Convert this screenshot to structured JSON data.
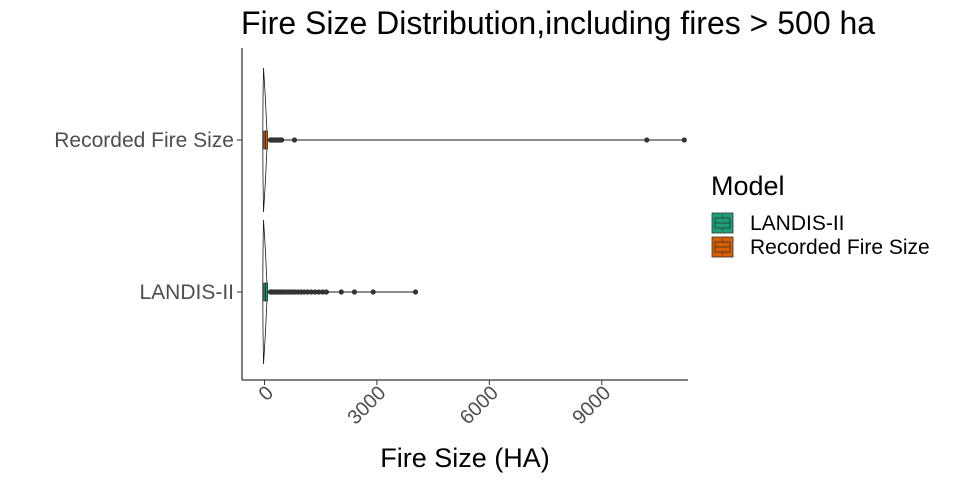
{
  "chart_data": {
    "type": "violin-box",
    "orientation": "horizontal",
    "title": "Fire Size Distribution,including fires > 500 ha",
    "xlabel": "Fire Size (HA)",
    "ylabel": "",
    "xlim": [
      -600,
      11300
    ],
    "xticks": [
      0,
      3000,
      6000,
      9000
    ],
    "xtick_labels": [
      "0",
      "3000",
      "6000",
      "9000"
    ],
    "categories": [
      "LANDIS-II",
      "Recorded Fire Size"
    ],
    "legend": {
      "title": "Model",
      "position": "right",
      "entries": [
        {
          "label": "LANDIS-II",
          "color": "#1b9e77"
        },
        {
          "label": "Recorded Fire Size",
          "color": "#d95f02"
        }
      ]
    },
    "series": [
      {
        "category": "LANDIS-II",
        "color": "#1b9e77",
        "box": {
          "min": 0,
          "q1": 5,
          "median": 20,
          "q3": 60,
          "whisker_high": 150
        },
        "outliers": [
          160,
          180,
          200,
          230,
          260,
          300,
          340,
          380,
          420,
          470,
          520,
          580,
          640,
          700,
          760,
          820,
          900,
          980,
          1060,
          1150,
          1250,
          1350,
          1450,
          1550,
          1650,
          2050,
          2400,
          2900,
          4030
        ]
      },
      {
        "category": "Recorded Fire Size",
        "color": "#d95f02",
        "box": {
          "min": 0,
          "q1": 5,
          "median": 20,
          "q3": 70,
          "whisker_high": 150
        },
        "outliers": [
          160,
          190,
          220,
          250,
          280,
          310,
          340,
          370,
          400,
          430,
          460,
          800,
          10200,
          11200
        ]
      }
    ],
    "grid": false
  }
}
